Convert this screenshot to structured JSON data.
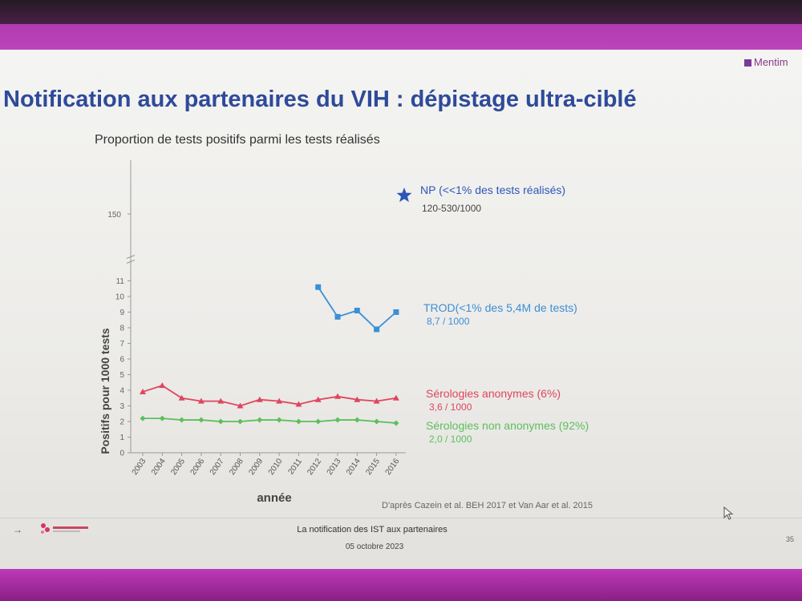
{
  "brand": {
    "label": "Mentim"
  },
  "slide": {
    "title": "Notification aux partenaires du VIH : dépistage ultra-ciblé",
    "subtitle": "Proportion de tests positifs parmi les tests réalisés",
    "source": "D'après Cazein et al. BEH 2017 et Van Aar et al. 2015"
  },
  "footer": {
    "arrow": "→",
    "text": "La notification des IST aux partenaires",
    "date": "05 octobre 2023",
    "page": "35"
  },
  "colors": {
    "title": "#2e4a9a",
    "np": "#2d56b8",
    "trod": "#3b8fd6",
    "sero_anon": "#e0455e",
    "sero_non_anon": "#5cbf5c"
  },
  "chart_data": {
    "type": "line",
    "title": "",
    "xlabel": "année",
    "ylabel": "Positifs pour 1000 tests",
    "x": [
      "2003",
      "2004",
      "2005",
      "2006",
      "2007",
      "2008",
      "2009",
      "2010",
      "2011",
      "2012",
      "2013",
      "2014",
      "2015",
      "2016"
    ],
    "y_ticks_lower": [
      "0",
      "1",
      "2",
      "3",
      "4",
      "5",
      "6",
      "7",
      "8",
      "9",
      "10",
      "11"
    ],
    "y_tick_upper": "150",
    "ylim": [
      0,
      11
    ],
    "y_break": [
      11,
      150
    ],
    "grid": false,
    "series": [
      {
        "name": "TROD(<1% des 5,4M de tests)",
        "sublabel": "8,7 / 1000",
        "color": "#3b8fd6",
        "values": [
          null,
          null,
          null,
          null,
          null,
          null,
          null,
          null,
          null,
          10.6,
          8.7,
          9.1,
          7.9,
          9.0
        ]
      },
      {
        "name": "Sérologies anonymes (6%)",
        "sublabel": "3,6 / 1000",
        "color": "#e0455e",
        "values": [
          3.9,
          4.3,
          3.5,
          3.3,
          3.3,
          3.0,
          3.4,
          3.3,
          3.1,
          3.4,
          3.6,
          3.4,
          3.3,
          3.5
        ]
      },
      {
        "name": "Sérologies non anonymes (92%)",
        "sublabel": "2,0 / 1000",
        "color": "#5cbf5c",
        "values": [
          2.2,
          2.2,
          2.1,
          2.1,
          2.0,
          2.0,
          2.1,
          2.1,
          2.0,
          2.0,
          2.1,
          2.1,
          2.0,
          1.9
        ]
      }
    ],
    "annotation": {
      "name": "NP (<<1% des tests réalisés)",
      "sublabel": "120-530/1000",
      "marker": "star"
    }
  }
}
